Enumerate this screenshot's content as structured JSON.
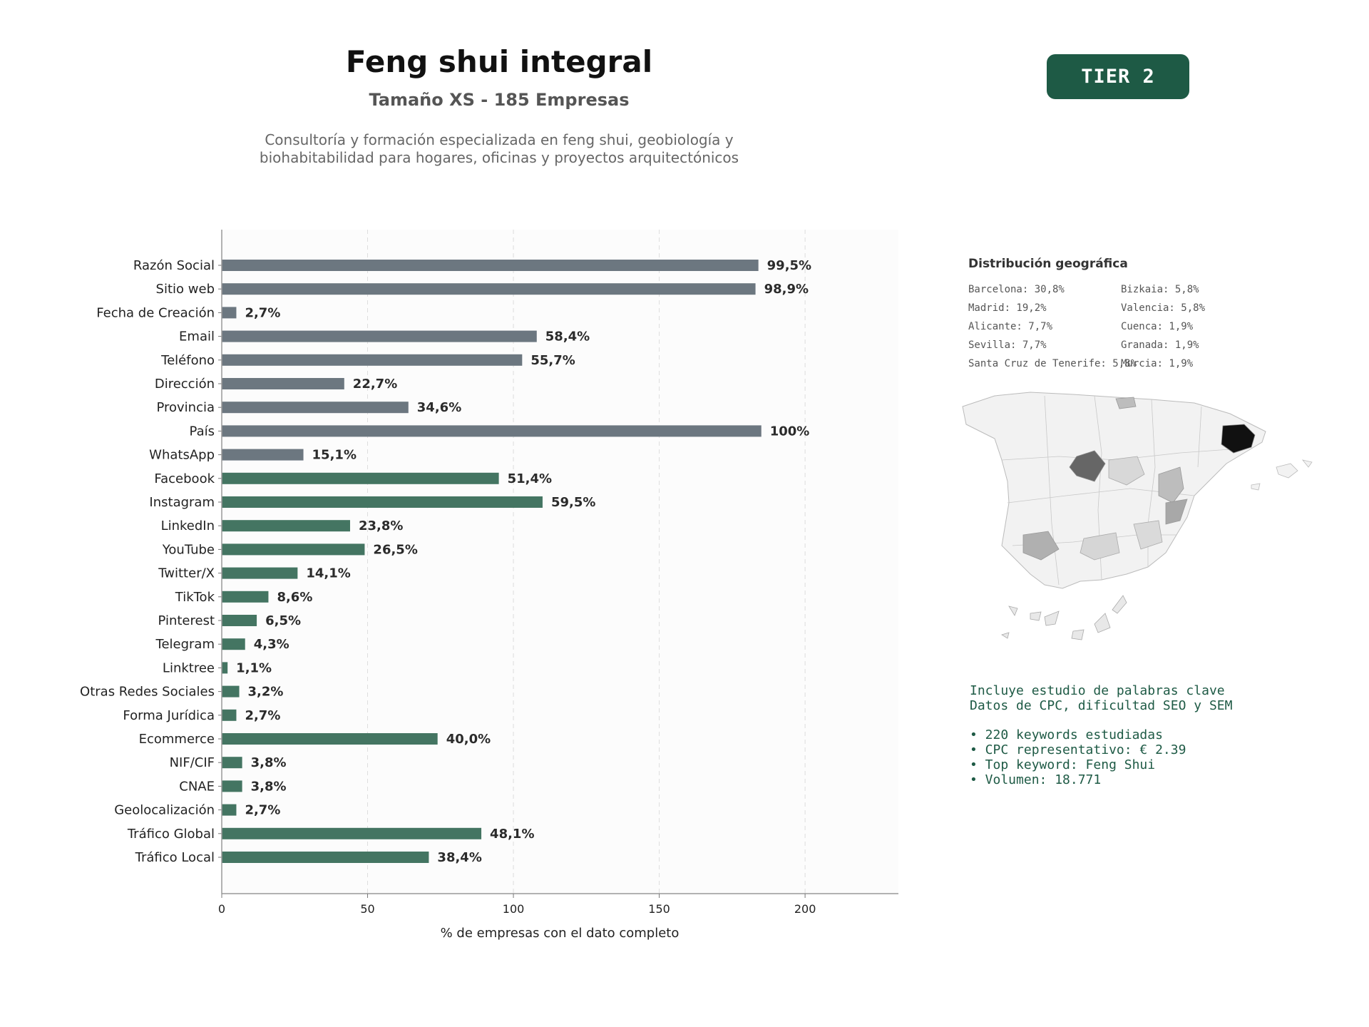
{
  "header": {
    "title": "Feng shui integral",
    "subtitle": "Tamaño XS - 185 Empresas",
    "description_line1": "Consultoría y formación especializada en feng shui, geobiología y",
    "description_line2": "biohabitabilidad para hogares, oficinas y proyectos arquitectónicos",
    "tier_label": "TIER 2"
  },
  "colors": {
    "gray_bar": "#6c7780",
    "green_bar": "#447562",
    "tier_bg": "#1e5a45",
    "text_dark": "#2b2b2b"
  },
  "chart_data": {
    "type": "bar",
    "orientation": "horizontal",
    "xlabel": "% de empresas con el dato completo",
    "xlim": [
      0,
      232
    ],
    "xticks": [
      0,
      50,
      100,
      150,
      200
    ],
    "grid": "vertical dashed",
    "categories": [
      "Razón Social",
      "Sitio web",
      "Fecha de Creación",
      "Email",
      "Teléfono",
      "Dirección",
      "Provincia",
      "País",
      "WhatsApp",
      "Facebook",
      "Instagram",
      "LinkedIn",
      "YouTube",
      "Twitter/X",
      "TikTok",
      "Pinterest",
      "Telegram",
      "Linktree",
      "Otras Redes Sociales",
      "Forma Jurídica",
      "Ecommerce",
      "NIF/CIF",
      "CNAE",
      "Geolocalización",
      "Tráfico Global",
      "Tráfico Local"
    ],
    "values": [
      184,
      183,
      5,
      108,
      103,
      42,
      64,
      185,
      28,
      95,
      110,
      44,
      49,
      26,
      16,
      12,
      8,
      2,
      6,
      5,
      74,
      7,
      7,
      5,
      89,
      71
    ],
    "labels": [
      "99,5%",
      "98,9%",
      "2,7%",
      "58,4%",
      "55,7%",
      "22,7%",
      "34,6%",
      "100%",
      "15,1%",
      "51,4%",
      "59,5%",
      "23,8%",
      "26,5%",
      "14,1%",
      "8,6%",
      "6,5%",
      "4,3%",
      "1,1%",
      "3,2%",
      "2,7%",
      "40,0%",
      "3,8%",
      "3,8%",
      "2,7%",
      "48,1%",
      "38,4%"
    ],
    "bar_group": [
      "gray",
      "gray",
      "gray",
      "gray",
      "gray",
      "gray",
      "gray",
      "gray",
      "gray",
      "green",
      "green",
      "green",
      "green",
      "green",
      "green",
      "green",
      "green",
      "green",
      "green",
      "green",
      "green",
      "green",
      "green",
      "green",
      "green",
      "green"
    ]
  },
  "geo": {
    "title": "Distribución geográfica",
    "left": [
      "Barcelona: 30,8%",
      "Madrid: 19,2%",
      "Alicante: 7,7%",
      "Sevilla: 7,7%",
      "Santa Cruz de Tenerife: 5,8%"
    ],
    "right": [
      "Bizkaia: 5,8%",
      "Valencia: 5,8%",
      "Cuenca: 1,9%",
      "Granada: 1,9%",
      "Murcia: 1,9%"
    ]
  },
  "keywords": {
    "line1": "Incluye estudio de palabras clave",
    "line2": "Datos de CPC, dificultad SEO y SEM",
    "bullets": [
      "• 220 keywords estudiadas",
      "• CPC representativo: € 2.39",
      "• Top keyword: Feng Shui",
      "• Volumen: 18.771"
    ]
  }
}
